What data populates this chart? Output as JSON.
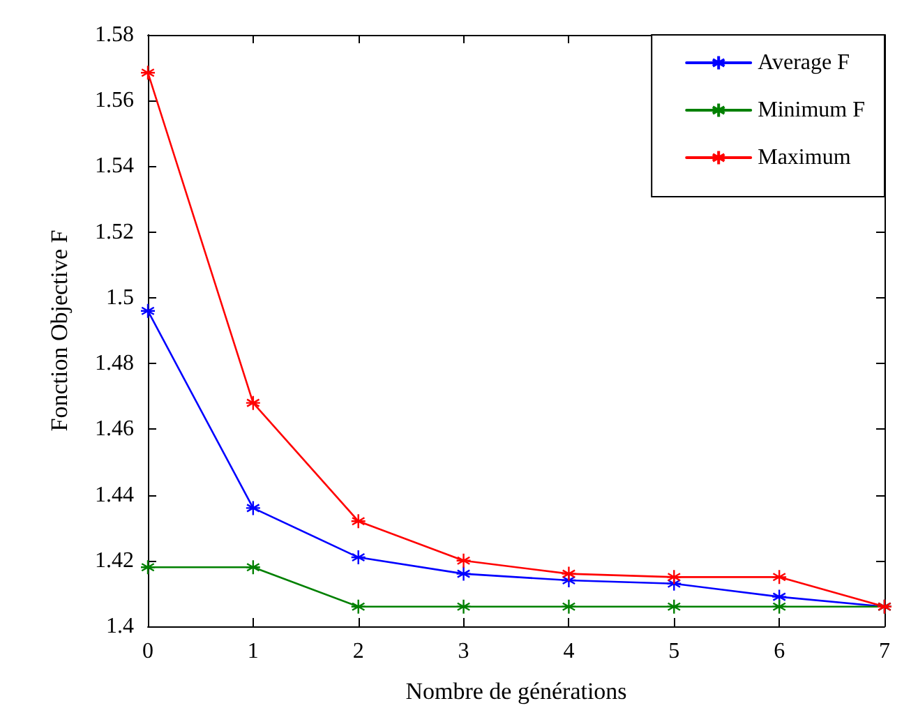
{
  "chart_data": {
    "type": "line",
    "xlabel": "Nombre de générations",
    "ylabel": "Fonction Objective F",
    "x": [
      0,
      1,
      2,
      3,
      4,
      5,
      6,
      7
    ],
    "series": [
      {
        "name": "Average F",
        "color": "#0000ff",
        "values": [
          1.496,
          1.436,
          1.421,
          1.416,
          1.414,
          1.413,
          1.409,
          1.406
        ]
      },
      {
        "name": "Minimum F",
        "color": "#008000",
        "values": [
          1.418,
          1.418,
          1.406,
          1.406,
          1.406,
          1.406,
          1.406,
          1.406
        ]
      },
      {
        "name": "Maximum",
        "color": "#ff0000",
        "values": [
          1.5685,
          1.468,
          1.432,
          1.42,
          1.416,
          1.415,
          1.415,
          1.406
        ]
      }
    ],
    "xlim": [
      0,
      7
    ],
    "xticks": [
      0,
      1,
      2,
      3,
      4,
      5,
      6,
      7
    ],
    "ylim": [
      1.4,
      1.58
    ],
    "yticks": [
      1.4,
      1.42,
      1.44,
      1.46,
      1.48,
      1.5,
      1.52,
      1.54,
      1.56,
      1.58
    ],
    "grid": false,
    "legend": "top right",
    "marker": "cross",
    "line_style": "solid"
  }
}
